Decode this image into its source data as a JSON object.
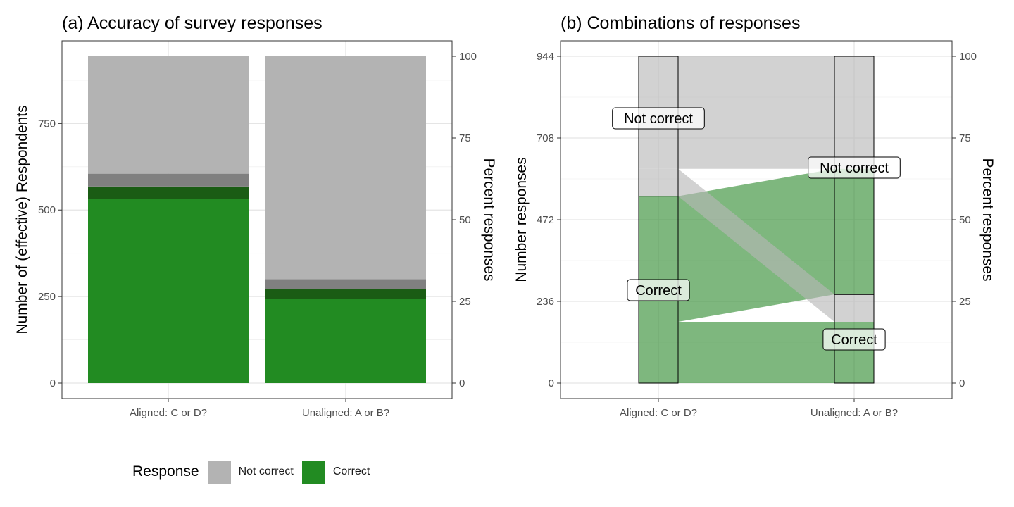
{
  "chart_data": [
    {
      "type": "bar",
      "title": "(a) Accuracy of survey responses",
      "ylabel": "Number of (effective) Respondents",
      "y2label": "Percent responses",
      "categories": [
        "Aligned: C or D?",
        "Unaligned: A or B?"
      ],
      "total": 944,
      "ylim": [
        0,
        944
      ],
      "yticks": [
        0,
        250,
        500,
        750
      ],
      "y2ticks": [
        0,
        25,
        50,
        75,
        100
      ],
      "stacks": [
        {
          "category": "Aligned: C or D?",
          "correct": 531,
          "correct_band_top": 568,
          "not_correct_band_top": 605
        },
        {
          "category": "Unaligned: A or B?",
          "correct": 244,
          "correct_band_top": 272,
          "not_correct_band_top": 300
        }
      ],
      "grid": true
    },
    {
      "type": "alluvial",
      "title": "(b) Combinations of responses",
      "ylabel": "Number responses",
      "y2label": "Percent responses",
      "categories": [
        "Aligned: C or D?",
        "Unaligned: A or B?"
      ],
      "total": 944,
      "yticks": [
        0,
        236,
        472,
        708,
        944
      ],
      "y2ticks": [
        0,
        25,
        50,
        75,
        100
      ],
      "axes": [
        {
          "category": "Aligned: C or D?",
          "strata": [
            {
              "label": "Correct",
              "value": 540
            },
            {
              "label": "Not correct",
              "value": 404
            }
          ]
        },
        {
          "category": "Unaligned: A or B?",
          "strata": [
            {
              "label": "Correct",
              "value": 256
            },
            {
              "label": "Not correct",
              "value": 688
            }
          ]
        }
      ],
      "flows": [
        {
          "from": "Correct",
          "to": "Correct",
          "value": 177
        },
        {
          "from": "Correct",
          "to": "Not correct",
          "value": 363
        },
        {
          "from": "Not correct",
          "to": "Correct",
          "value": 79
        },
        {
          "from": "Not correct",
          "to": "Not correct",
          "value": 325
        }
      ],
      "grid": true
    }
  ],
  "legend": {
    "title": "Response",
    "items": [
      {
        "label": "Not correct",
        "color": "#b3b3b3"
      },
      {
        "label": "Correct",
        "color": "#228b22"
      }
    ]
  },
  "colors": {
    "correct": "#228b22",
    "correct_dark": "#1a5c14",
    "not_correct": "#b3b3b3",
    "not_correct_dark": "#808080",
    "flow_correct": "#2e8b2e",
    "flow_not_correct": "#b7b7b7"
  }
}
